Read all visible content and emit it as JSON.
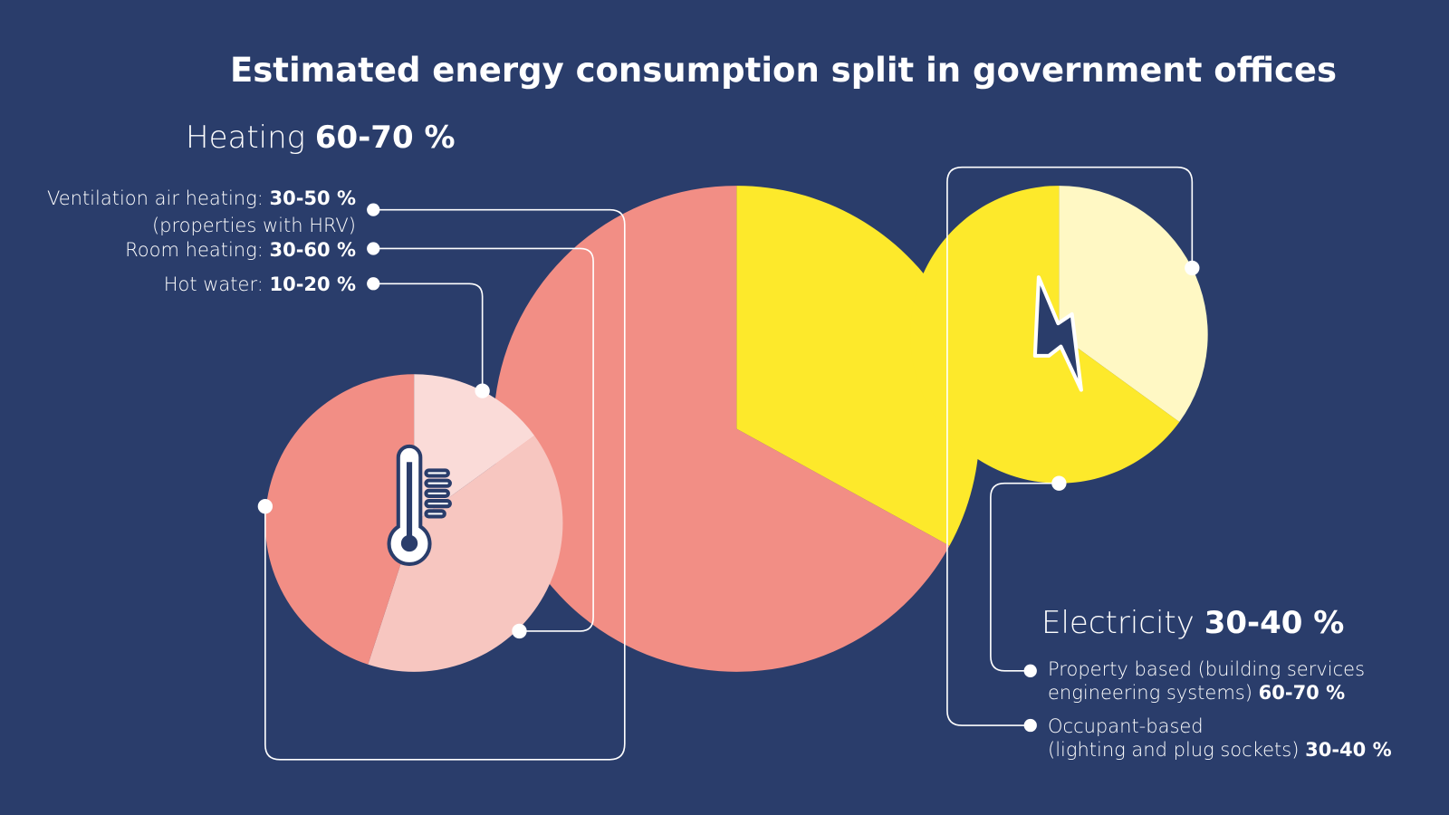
{
  "title": "Estimated energy consumption split in government offices",
  "heating": {
    "label": "Heating",
    "value": "60-70 %",
    "items": [
      {
        "label": "Ventilation air heating:",
        "value": "30-50 %",
        "note": "(properties with HRV)"
      },
      {
        "label": "Room heating:",
        "value": "30-60 %"
      },
      {
        "label": "Hot water:",
        "value": "10-20 %"
      }
    ]
  },
  "electricity": {
    "label": "Electricity",
    "value": "30-40 %",
    "items": [
      {
        "line1": "Property based (building services",
        "line2": "engineering systems)",
        "value": "60-70 %"
      },
      {
        "line1": "Occupant-based",
        "line2": "(lighting and plug sockets)",
        "value": "30-40 %"
      }
    ]
  },
  "icons": {
    "heating": "thermometer-icon",
    "electricity": "lightning-bolt-icon"
  },
  "colors": {
    "background": "#2A3D6B",
    "heating": "#F28E85",
    "electricity": "#FDE92B",
    "heating_light": "#F7C6C0",
    "heating_lighter": "#FADBD8",
    "electricity_light": "#FFF8C4"
  },
  "chart_data": [
    {
      "type": "pie",
      "name": "total",
      "categories": [
        "Heating",
        "Electricity"
      ],
      "values": [
        67,
        33
      ],
      "colors": [
        "#F28E85",
        "#FDE92B"
      ]
    },
    {
      "type": "pie",
      "name": "heating",
      "categories": [
        "Ventilation air heating",
        "Room heating",
        "Hot water"
      ],
      "values": [
        45,
        40,
        15
      ],
      "colors": [
        "#F28E85",
        "#F7C6C0",
        "#FADBD8"
      ]
    },
    {
      "type": "pie",
      "name": "electricity",
      "categories": [
        "Property based",
        "Occupant-based"
      ],
      "values": [
        65,
        35
      ],
      "colors": [
        "#FDE92B",
        "#FFF8C4"
      ]
    }
  ]
}
